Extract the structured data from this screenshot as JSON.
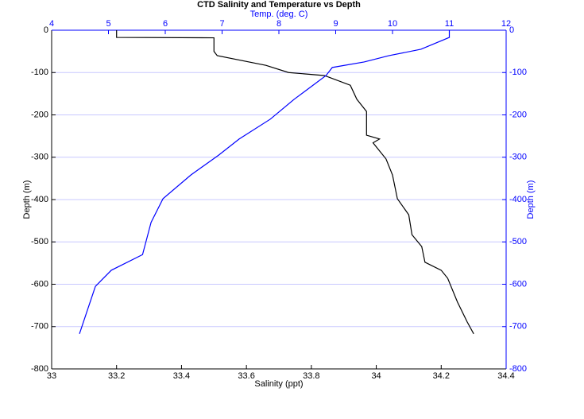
{
  "chart_data": {
    "type": "line",
    "title": "CTD Salinity and Temperature vs Depth",
    "xlabel": "Salinity (ppt)",
    "x2label": "Temp. (deg. C)",
    "ylabel": "Depth (m)",
    "y2label": "Depth (m)",
    "xlim": [
      33,
      34.4
    ],
    "xticks": [
      33,
      33.2,
      33.4,
      33.6,
      33.8,
      34,
      34.2,
      34.4
    ],
    "x2lim": [
      4,
      12
    ],
    "x2ticks": [
      4,
      5,
      6,
      7,
      8,
      9,
      10,
      11,
      12
    ],
    "ylim": [
      -800,
      0
    ],
    "yticks": [
      0,
      -100,
      -200,
      -300,
      -400,
      -500,
      -600,
      -700,
      -800
    ],
    "grid": true,
    "grid_color": "#c8c8ff",
    "series": [
      {
        "color": "#000000",
        "x": [
          33.2,
          33.2,
          33.5,
          33.5,
          33.51,
          33.66,
          33.73,
          33.84,
          33.92,
          33.94,
          33.97,
          33.97,
          34.01,
          33.99,
          34.03,
          34.05,
          34.065,
          34.1,
          34.11,
          34.14,
          34.15,
          34.2,
          34.22,
          34.25,
          34.28,
          34.3
        ],
        "values": [
          0,
          -17,
          -18,
          -50,
          -60,
          -83,
          -100,
          -107,
          -130,
          -163,
          -192,
          -248,
          -257,
          -266,
          -304,
          -342,
          -398,
          -436,
          -483,
          -511,
          -548,
          -567,
          -586,
          -642,
          -689,
          -717
        ]
      },
      {
        "color": "#0000ff",
        "axis": "x2",
        "x": [
          11.0,
          11.0,
          10.5,
          9.94,
          9.5,
          8.94,
          8.83,
          8.6,
          8.27,
          7.85,
          7.3,
          6.94,
          6.45,
          5.96,
          5.75,
          5.6,
          5.05,
          4.77,
          4.63,
          4.49
        ],
        "values": [
          0,
          -17,
          -45,
          -60,
          -75,
          -88,
          -107,
          -130,
          -163,
          -210,
          -257,
          -295,
          -342,
          -398,
          -454,
          -530,
          -567,
          -605,
          -661,
          -717
        ]
      }
    ]
  }
}
